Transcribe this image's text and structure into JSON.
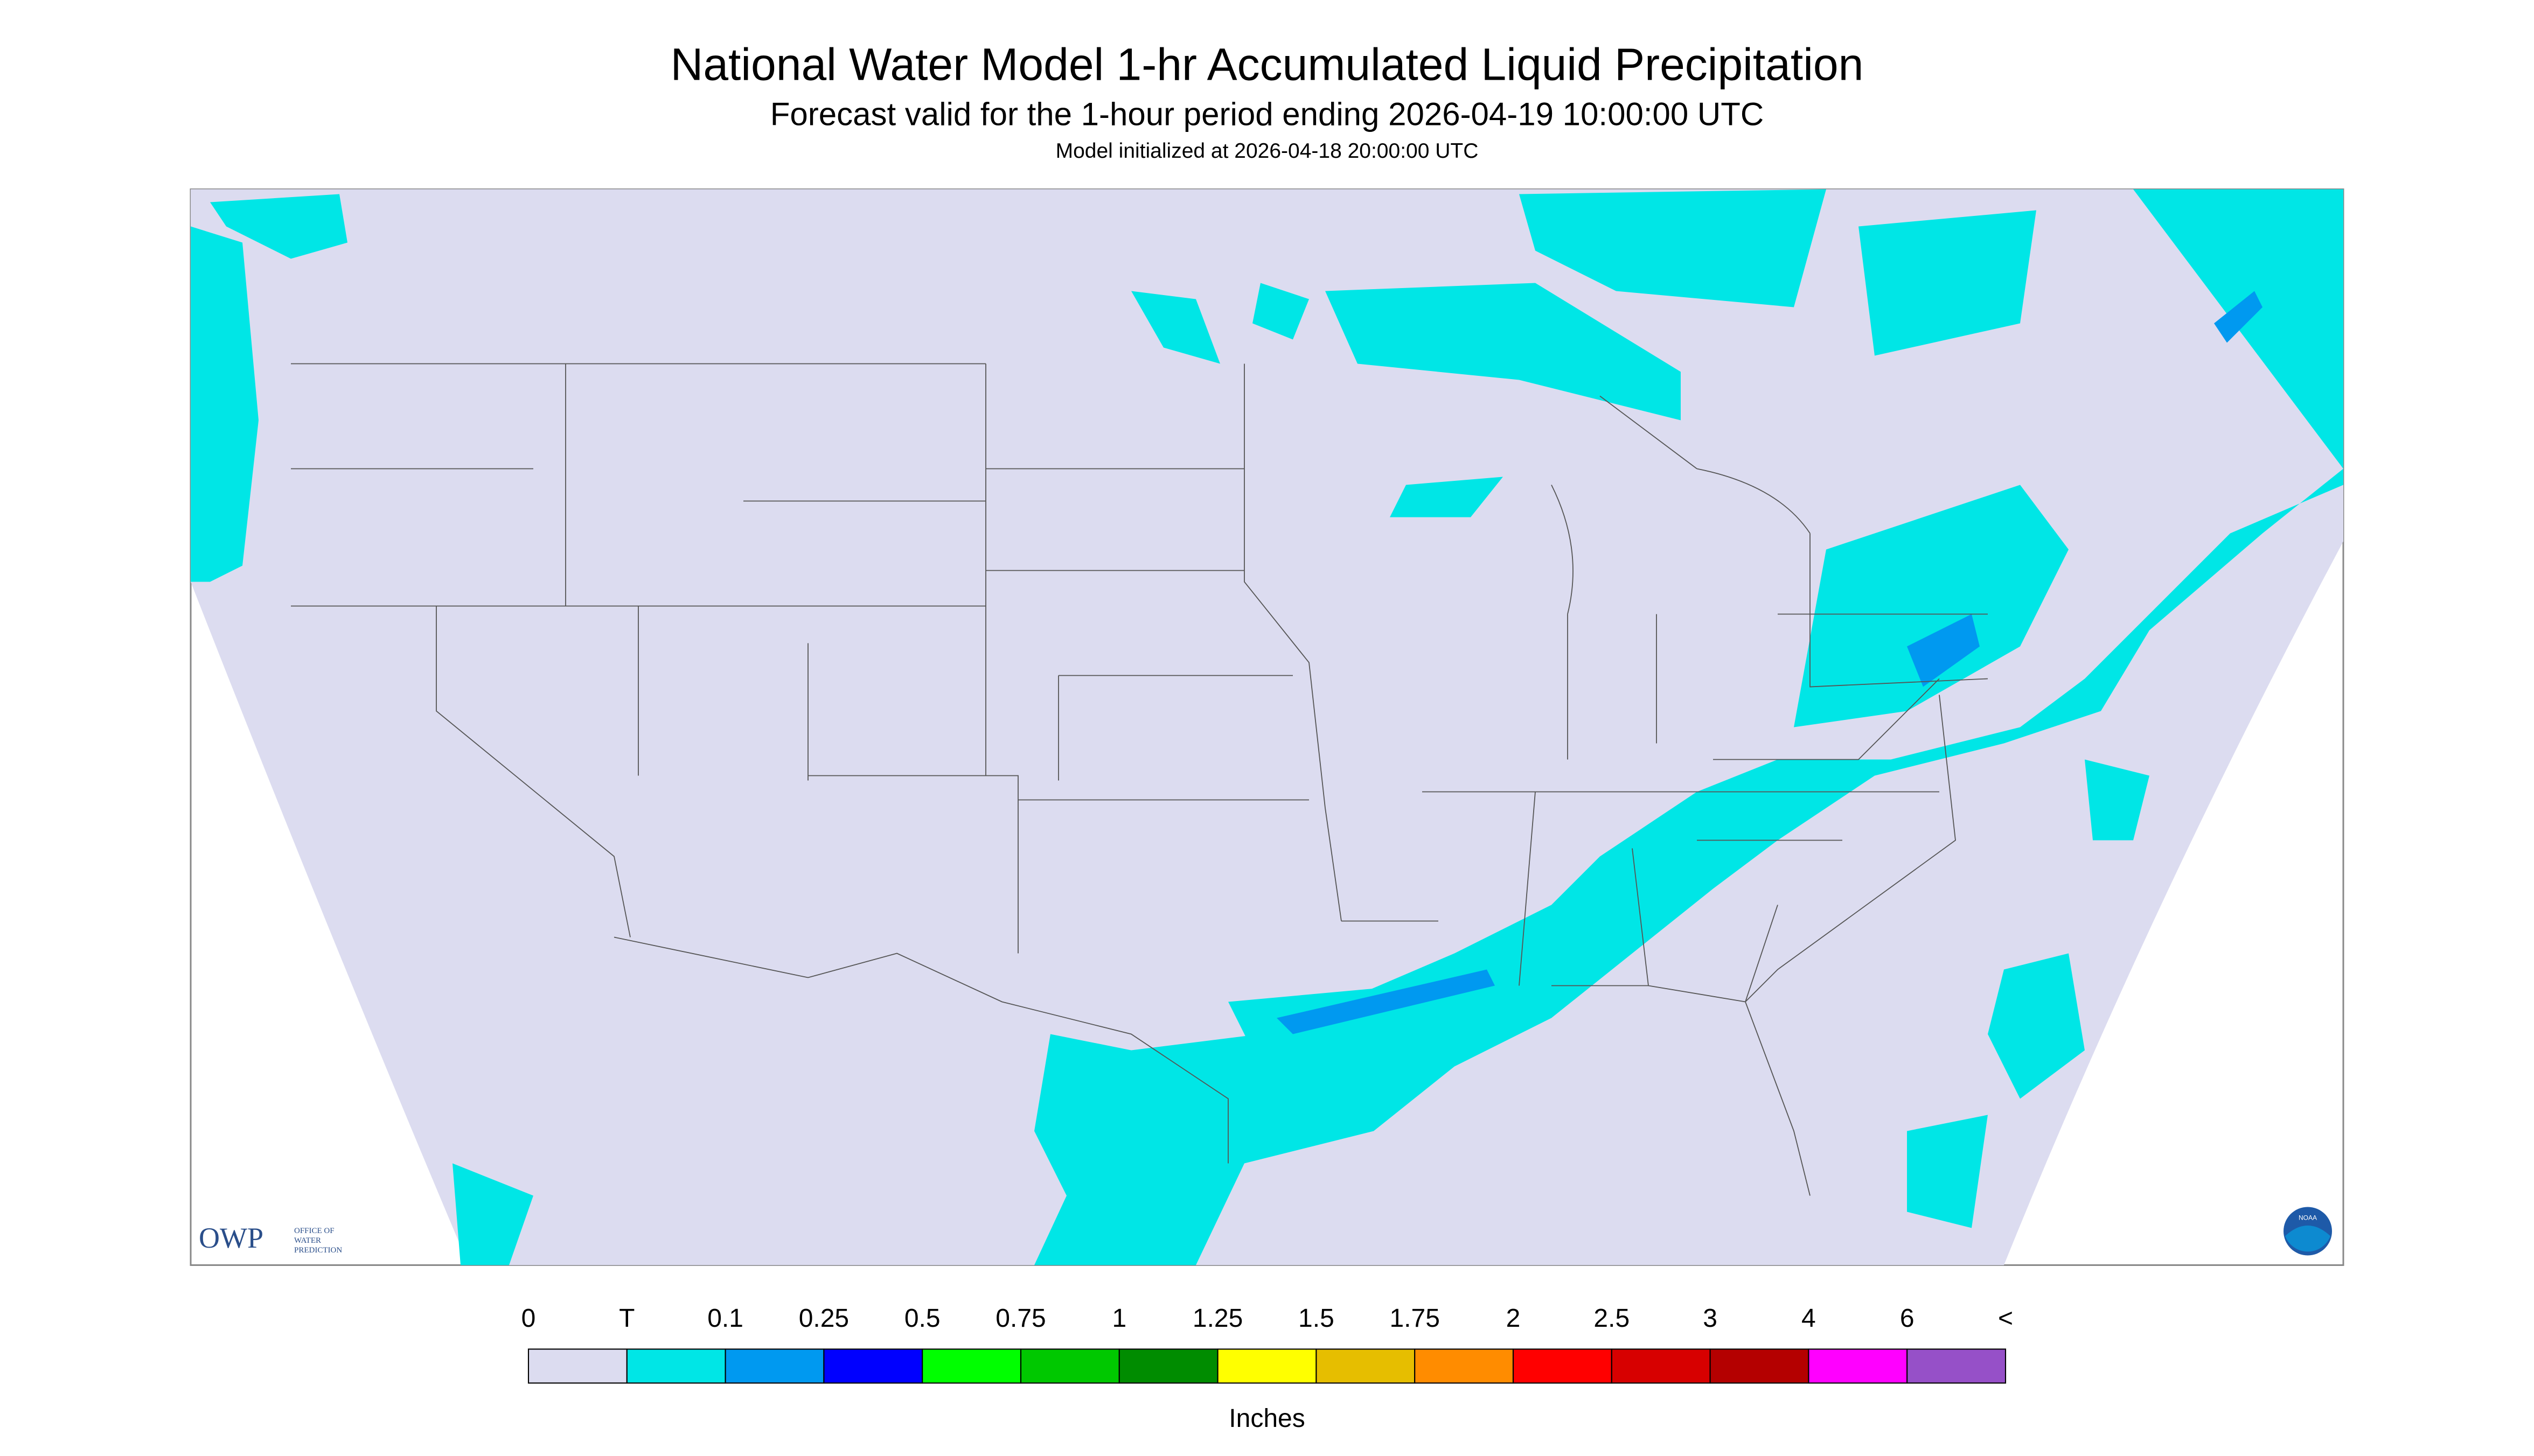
{
  "header": {
    "title": "National Water Model 1-hr Accumulated Liquid Precipitation",
    "subtitle": "Forecast valid for the 1-hour period ending 2026-04-19 10:00:00 UTC",
    "initialized": "Model initialized at 2026-04-18 20:00:00 UTC"
  },
  "logos": {
    "owp": "OWP",
    "owp_line1": "OFFICE OF",
    "owp_line2": "WATER",
    "owp_line3": "PREDICTION",
    "noaa": "NOAA"
  },
  "legend": {
    "labels": [
      "0",
      "T",
      "0.1",
      "0.25",
      "0.5",
      "0.75",
      "1",
      "1.25",
      "1.5",
      "1.75",
      "2",
      "2.5",
      "3",
      "4",
      "6",
      "<"
    ],
    "colors": [
      "#dcdcf0",
      "#00e6e6",
      "#0099f0",
      "#0000ff",
      "#00ff00",
      "#00c800",
      "#008c00",
      "#ffff00",
      "#e6be00",
      "#ff8c00",
      "#ff0000",
      "#d70000",
      "#b40000",
      "#ff00ff",
      "#9650c8"
    ],
    "unit": "Inches"
  }
}
